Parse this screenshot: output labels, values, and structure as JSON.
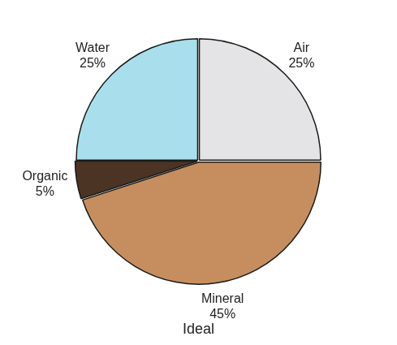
{
  "chart_data": {
    "type": "pie",
    "title": "Ideal",
    "categories": [
      "Air",
      "Mineral",
      "Organic",
      "Water"
    ],
    "values": [
      25,
      45,
      5,
      25
    ],
    "value_labels": [
      "25%",
      "45%",
      "5%",
      "25%"
    ],
    "colors": [
      "#e4e4e6",
      "#c68e5e",
      "#4b3424",
      "#a9dfec"
    ],
    "data_labels": true
  }
}
